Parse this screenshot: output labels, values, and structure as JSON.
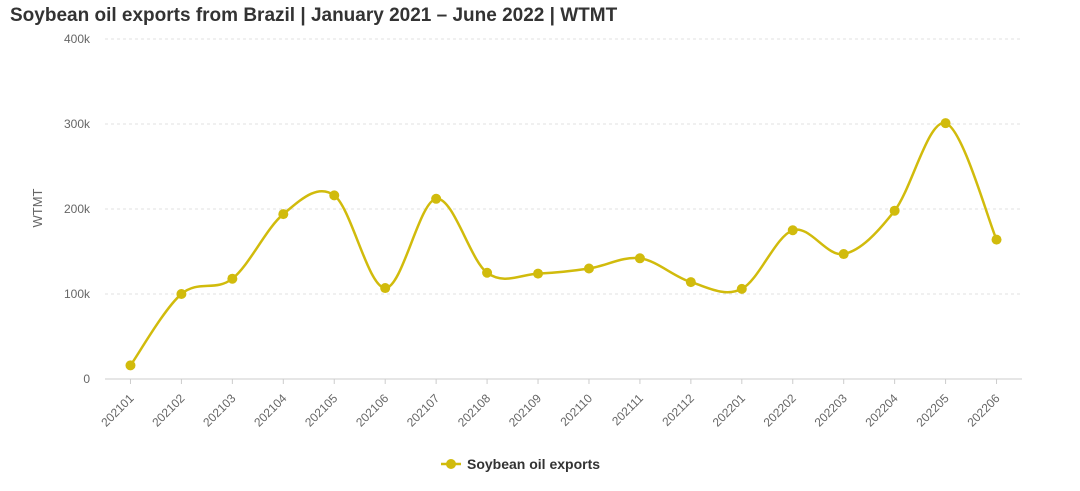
{
  "chart_data": {
    "type": "line",
    "title": "Soybean oil exports from Brazil | January 2021 – June 2022 | WTMT",
    "xlabel": "",
    "ylabel": "WTMT",
    "categories": [
      "202101",
      "202102",
      "202103",
      "202104",
      "202105",
      "202106",
      "202107",
      "202108",
      "202109",
      "202110",
      "202111",
      "202112",
      "202201",
      "202202",
      "202203",
      "202204",
      "202205",
      "202206"
    ],
    "series": [
      {
        "name": "Soybean oil exports",
        "values": [
          16000,
          100000,
          118000,
          194000,
          216000,
          107000,
          212000,
          125000,
          124000,
          130000,
          142000,
          114000,
          106000,
          175000,
          147000,
          198000,
          301000,
          164000
        ]
      }
    ],
    "ylim": [
      0,
      400000
    ],
    "yticks": [
      0,
      100000,
      200000,
      300000,
      400000
    ],
    "ytick_labels": [
      "0",
      "100k",
      "200k",
      "300k",
      "400k"
    ],
    "grid": true,
    "legend": "bottom-center",
    "colors": {
      "series": "#d1bb0c",
      "grid": "#e0e0e0",
      "axis": "#cccccc"
    }
  }
}
